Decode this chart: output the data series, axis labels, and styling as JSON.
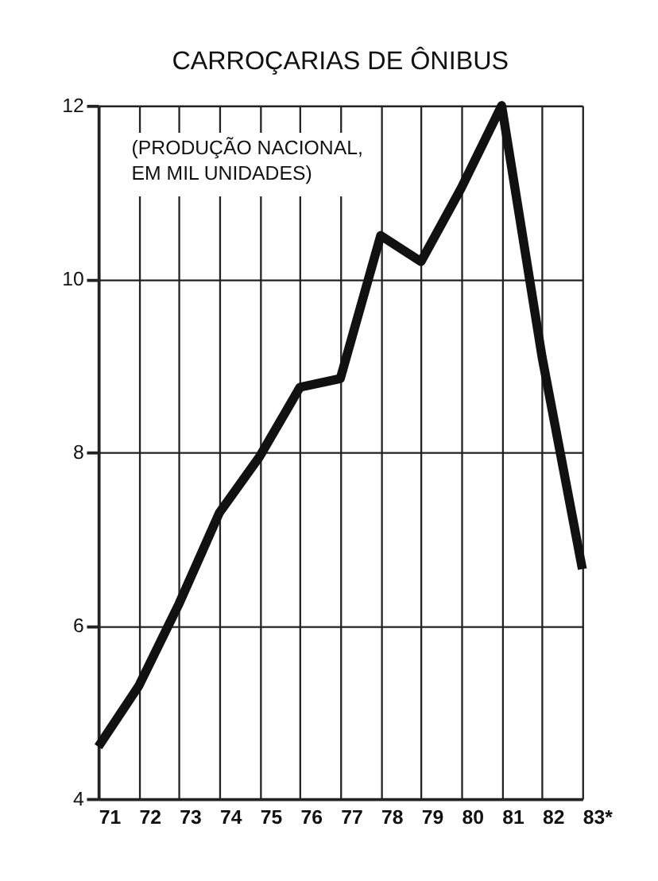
{
  "chart_data": {
    "type": "line",
    "title": "CARROÇARIAS DE ÔNIBUS",
    "subtitle": "(PRODUÇÃO NACIONAL,\nEM MIL UNIDADES)",
    "categories": [
      "71",
      "72",
      "73",
      "74",
      "75",
      "76",
      "77",
      "78",
      "79",
      "80",
      "81",
      "82",
      "83*"
    ],
    "series": [
      {
        "color": "#111111",
        "values": [
          4.6,
          5.3,
          6.25,
          7.3,
          7.95,
          8.75,
          8.85,
          10.5,
          10.2,
          11.05,
          12.0,
          9.1,
          6.65
        ]
      }
    ],
    "ylim": [
      4,
      12
    ],
    "yticks": [
      4,
      6,
      8,
      10,
      12
    ],
    "grid": true,
    "line_style": "solid"
  }
}
